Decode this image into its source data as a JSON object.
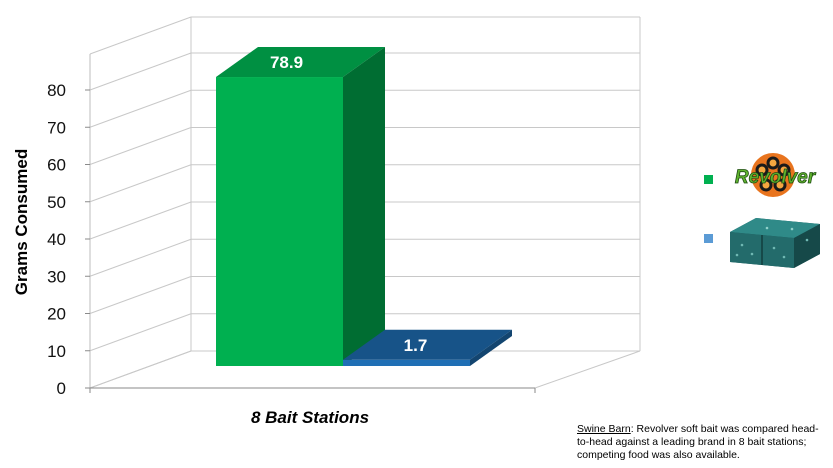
{
  "chart_data": {
    "type": "bar",
    "categories": [
      "8 Bait Stations"
    ],
    "series": [
      {
        "values": [
          78.9
        ],
        "color": "#00b050",
        "legend_icon": "revolver-logo-icon"
      },
      {
        "values": [
          1.7
        ],
        "color": "#1f6fb5",
        "legend_icon": "competitor-bait-block-icon"
      }
    ],
    "data_labels": [
      "78.9",
      "1.7"
    ],
    "ylabel": "Grams Consumed",
    "ylim": [
      0,
      80
    ],
    "yticks": [
      "0",
      "10",
      "20",
      "30",
      "40",
      "50",
      "60",
      "70",
      "80"
    ],
    "grid": true,
    "three_d": true,
    "legend_position": "right"
  },
  "legend": {
    "logo_text": "Revolver"
  },
  "caption": {
    "lead": "Swine Barn",
    "text": ": Revolver soft bait was compared head-to-head against a leading brand in 8 bait stations; competing food was also available."
  }
}
